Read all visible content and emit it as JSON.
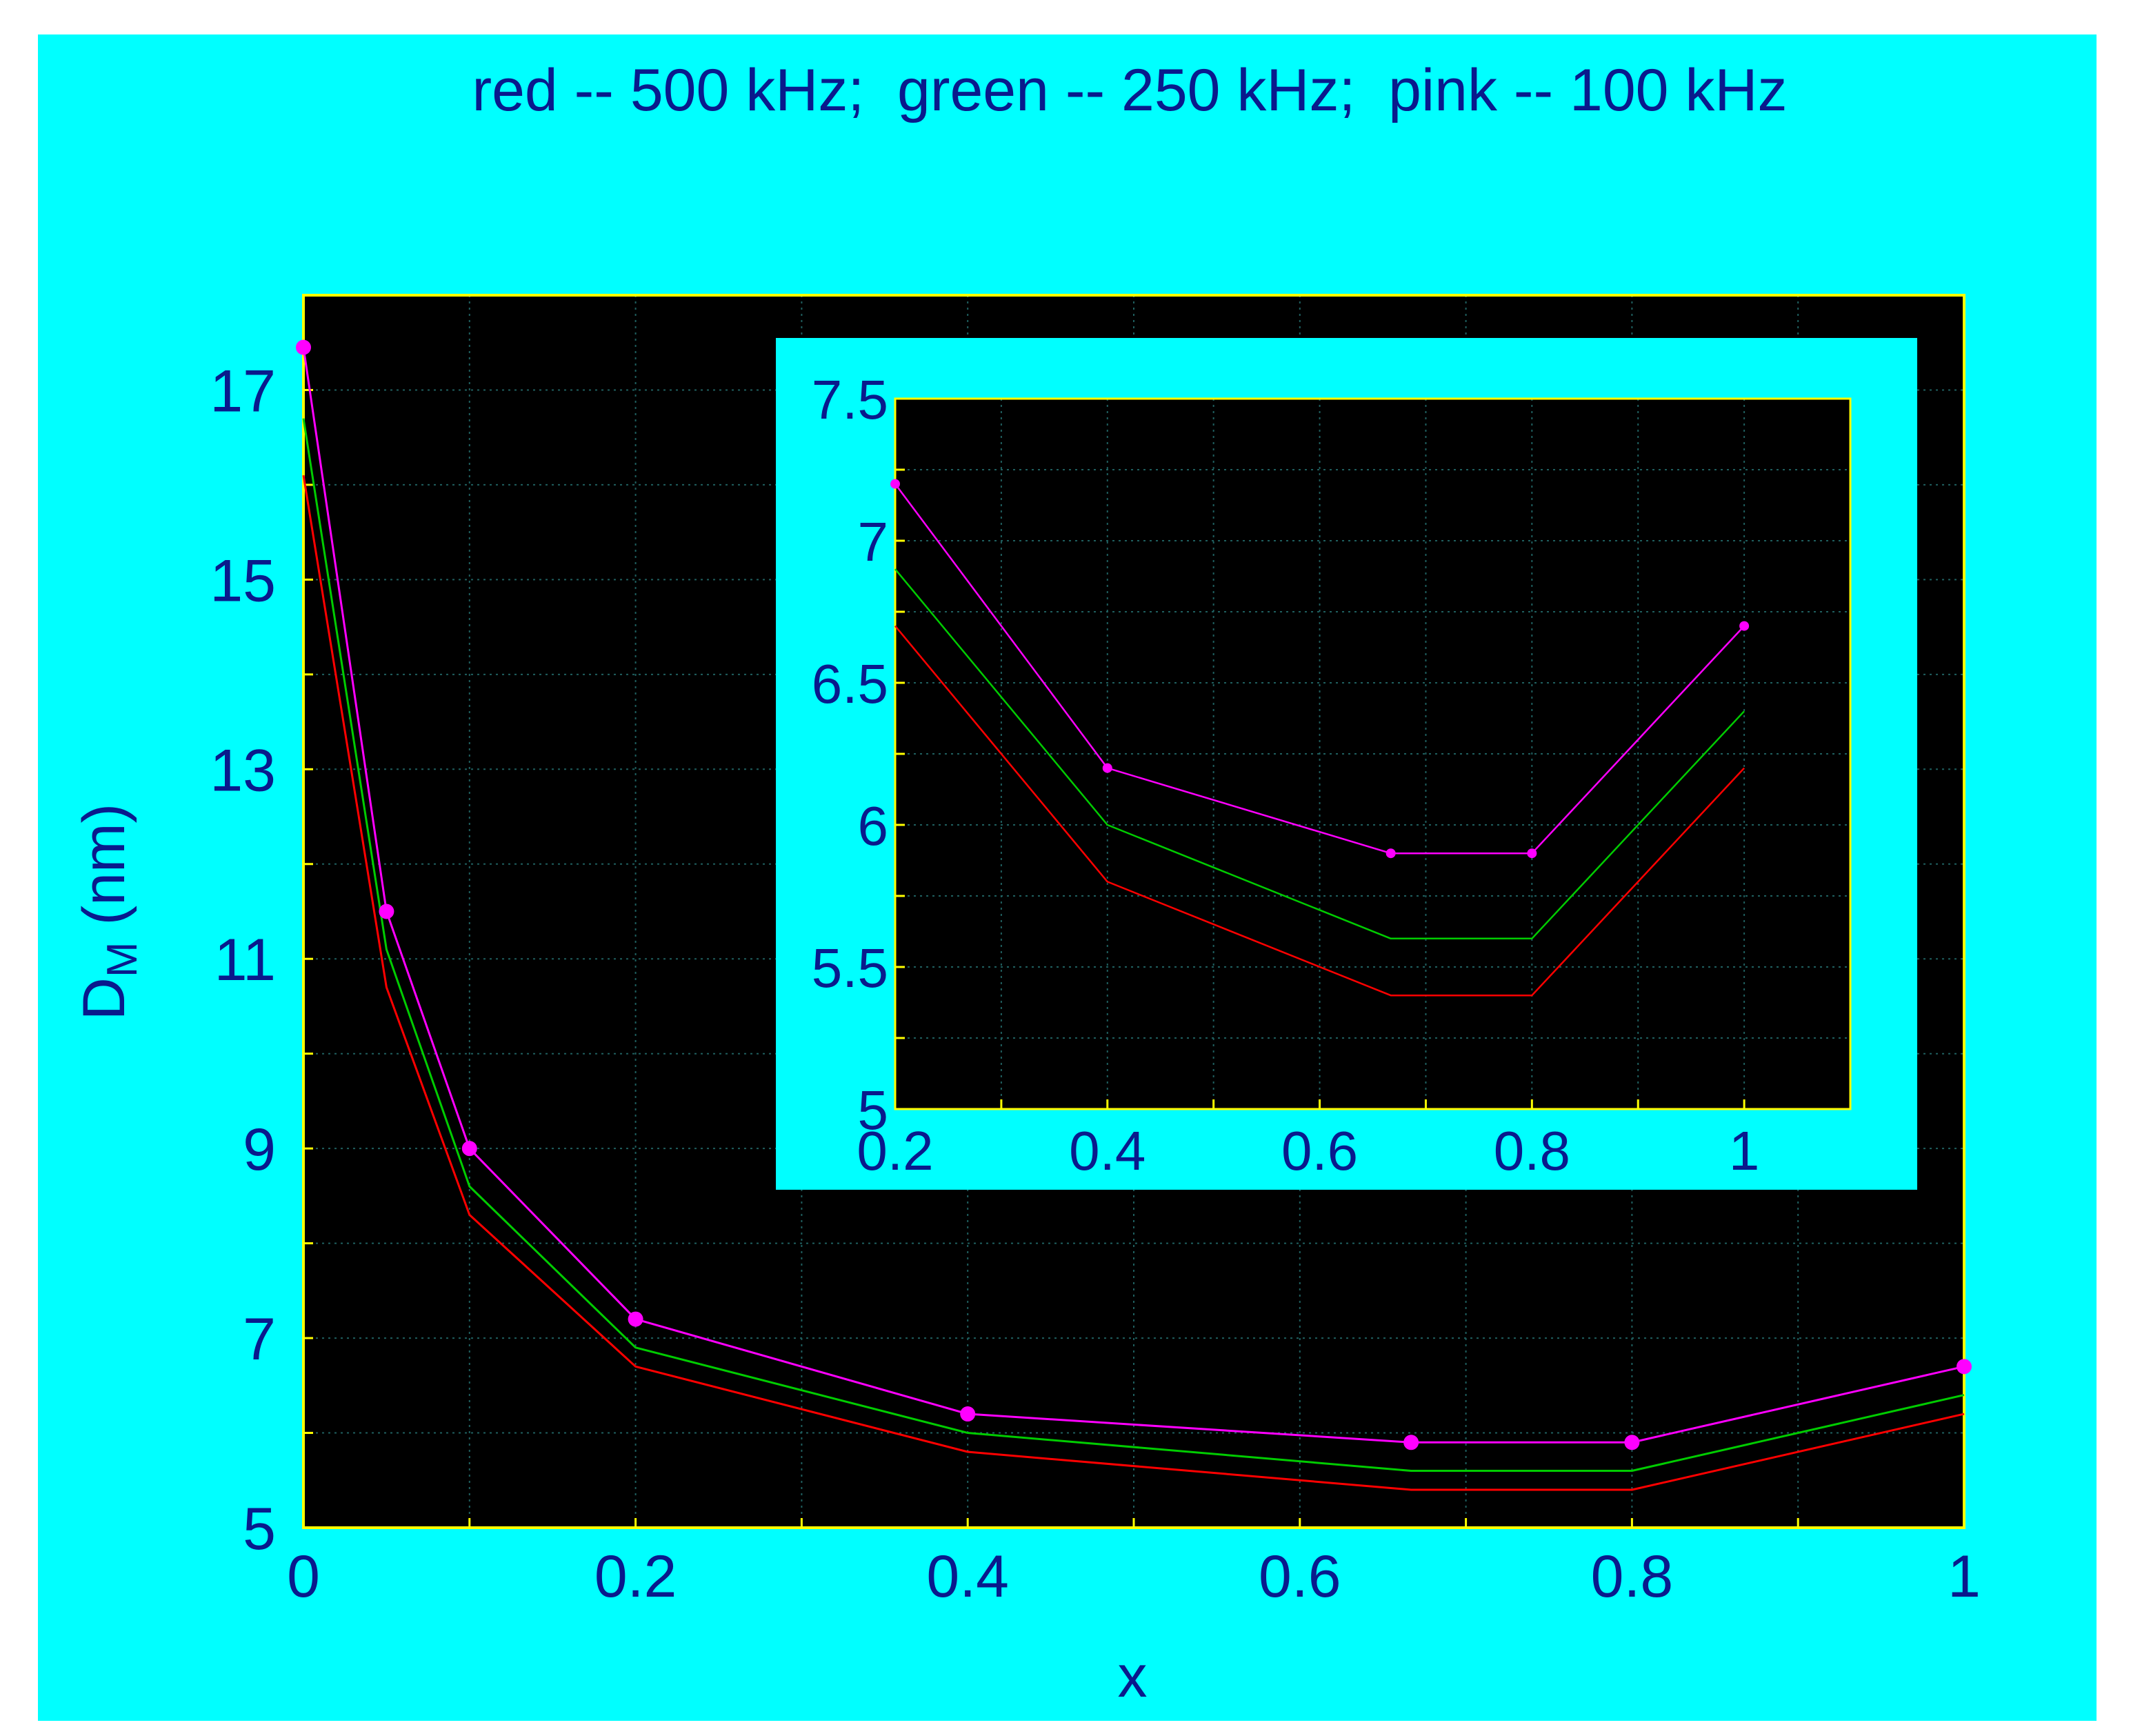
{
  "colors": {
    "figure_bg": "#00ffff",
    "plot_bg": "#000000",
    "frame": "#ffff00",
    "grid": "#1f5f5f",
    "text": "#0a1a8c",
    "red": "#ff0000",
    "green": "#00cc00",
    "pink": "#ff00ff"
  },
  "title": "red -- 500 kHz;  green -- 250 kHz;  pink -- 100 kHz",
  "chart_data": [
    {
      "type": "line",
      "xlabel": "x",
      "ylabel_main": "D",
      "ylabel_sub": "M",
      "ylabel_unit": " (nm)",
      "xlim": [
        0,
        1
      ],
      "ylim": [
        5,
        18
      ],
      "xticks": [
        0,
        0.2,
        0.4,
        0.6,
        0.8,
        1
      ],
      "xtick_labels": [
        "0",
        "0.2",
        "0.4",
        "0.6",
        "0.8",
        "1"
      ],
      "yticks": [
        5,
        7,
        9,
        11,
        13,
        15,
        17
      ],
      "ytick_labels": [
        "5",
        "7",
        "9",
        "11",
        "13",
        "15",
        "17"
      ],
      "grid": true,
      "series": [
        {
          "color": "red",
          "x": [
            0,
            0.05,
            0.1,
            0.2,
            0.4,
            0.667,
            0.8,
            1
          ],
          "y": [
            16.1,
            10.7,
            8.3,
            6.7,
            5.8,
            5.4,
            5.4,
            6.2
          ],
          "markers": false
        },
        {
          "color": "green",
          "x": [
            0,
            0.05,
            0.1,
            0.2,
            0.4,
            0.667,
            0.8,
            1
          ],
          "y": [
            16.7,
            11.1,
            8.6,
            6.9,
            6.0,
            5.6,
            5.6,
            6.4
          ],
          "markers": false
        },
        {
          "color": "pink",
          "x": [
            0,
            0.05,
            0.1,
            0.2,
            0.4,
            0.667,
            0.8,
            1
          ],
          "y": [
            17.45,
            11.5,
            9.0,
            7.2,
            6.2,
            5.9,
            5.9,
            6.7
          ],
          "markers": true
        }
      ]
    },
    {
      "type": "line",
      "inset": true,
      "xlim": [
        0.2,
        1.1
      ],
      "ylim": [
        5,
        7.5
      ],
      "xticks": [
        0.2,
        0.4,
        0.6,
        0.8,
        1
      ],
      "xtick_labels": [
        "0.2",
        "0.4",
        "0.6",
        "0.8",
        "1"
      ],
      "yticks": [
        5,
        5.5,
        6,
        6.5,
        7,
        7.5
      ],
      "ytick_labels": [
        "5",
        "5.5",
        "6",
        "6.5",
        "7",
        "7.5"
      ],
      "grid": true,
      "series": [
        {
          "color": "red",
          "x": [
            0.2,
            0.4,
            0.667,
            0.8,
            1
          ],
          "y": [
            6.7,
            5.8,
            5.4,
            5.4,
            6.2
          ],
          "markers": false
        },
        {
          "color": "green",
          "x": [
            0.2,
            0.4,
            0.667,
            0.8,
            1
          ],
          "y": [
            6.9,
            6.0,
            5.6,
            5.6,
            6.4
          ],
          "markers": false
        },
        {
          "color": "pink",
          "x": [
            0.2,
            0.4,
            0.667,
            0.8,
            1
          ],
          "y": [
            7.2,
            6.2,
            5.9,
            5.9,
            6.7
          ],
          "markers": true
        }
      ]
    }
  ]
}
